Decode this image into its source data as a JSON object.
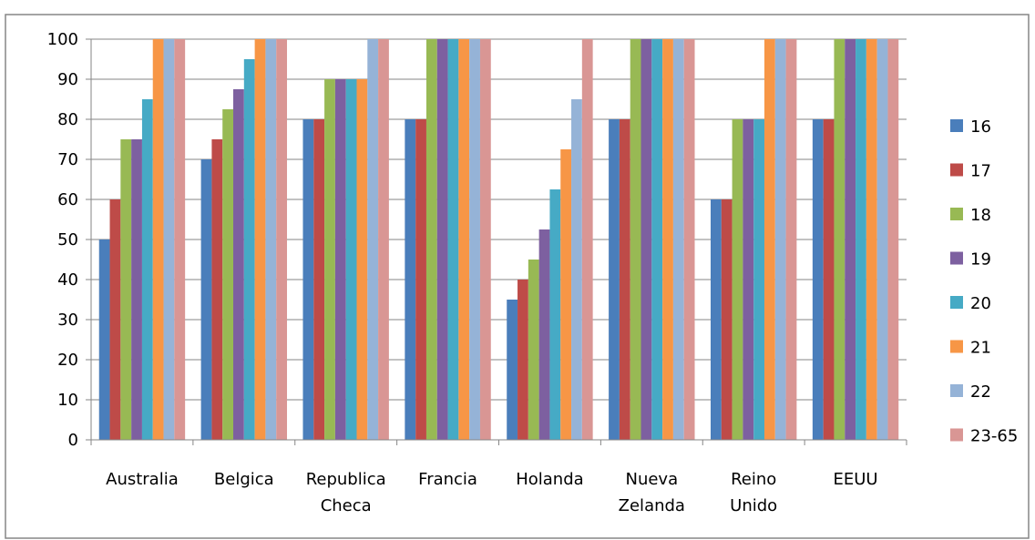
{
  "chart_data": {
    "type": "bar",
    "categories": [
      [
        "Australia"
      ],
      [
        "Belgica"
      ],
      [
        "Republica",
        "Checa"
      ],
      [
        "Francia"
      ],
      [
        "Holanda"
      ],
      [
        "Nueva",
        "Zelanda"
      ],
      [
        "Reino",
        "Unido"
      ],
      [
        "EEUU"
      ]
    ],
    "series": [
      {
        "name": "16",
        "color": "#4A7EBB",
        "values": [
          50,
          70,
          80,
          80,
          35,
          80,
          60,
          80
        ]
      },
      {
        "name": "17",
        "color": "#BE4B48",
        "values": [
          60,
          75,
          80,
          80,
          40,
          80,
          60,
          80
        ]
      },
      {
        "name": "18",
        "color": "#98B954",
        "values": [
          75,
          82.5,
          90,
          100,
          45,
          100,
          80,
          100
        ]
      },
      {
        "name": "19",
        "color": "#7D60A0",
        "values": [
          75,
          87.5,
          90,
          100,
          52.5,
          100,
          80,
          100
        ]
      },
      {
        "name": "20",
        "color": "#46AAC5",
        "values": [
          85,
          95,
          90,
          100,
          62.5,
          100,
          80,
          100
        ]
      },
      {
        "name": "21",
        "color": "#F79646",
        "values": [
          100,
          100,
          90,
          100,
          72.5,
          100,
          100,
          100
        ]
      },
      {
        "name": "22",
        "color": "#95B3D7",
        "values": [
          100,
          100,
          100,
          100,
          85,
          100,
          100,
          100
        ]
      },
      {
        "name": "23-65",
        "color": "#D99694",
        "values": [
          100,
          100,
          100,
          100,
          100,
          100,
          100,
          100
        ]
      }
    ],
    "ylim": [
      0,
      100
    ],
    "yticks": [
      "0",
      "10",
      "20",
      "30",
      "40",
      "50",
      "60",
      "70",
      "80",
      "90",
      "100"
    ],
    "grid": true,
    "legend_position": "right"
  }
}
